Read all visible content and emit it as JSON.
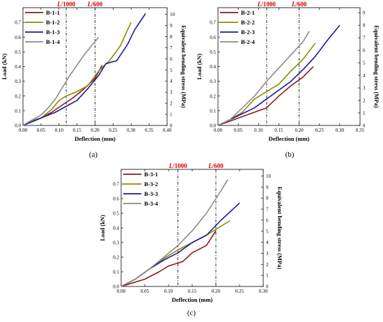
{
  "chart_data": [
    {
      "type": "line",
      "caption": "(a)",
      "xlabel": "Deflection (mm)",
      "ylabel": "Load (kN)",
      "y2label": "Equivalent bending stress (MPa)",
      "xlim": [
        0,
        0.4
      ],
      "ylim": [
        0,
        0.8
      ],
      "y2lim": [
        0,
        10.6
      ],
      "xticks": [
        "0.00",
        "0.05",
        "0.10",
        "0.15",
        "0.20",
        "0.25",
        "0.30",
        "0.35",
        "0.40"
      ],
      "yticks": [
        "0.0",
        "0.1",
        "0.2",
        "0.3",
        "0.4",
        "0.5",
        "0.6",
        "0.7"
      ],
      "y2ticks": [
        "0",
        "1",
        "2",
        "3",
        "4",
        "5",
        "6",
        "7",
        "8",
        "9",
        "10"
      ],
      "legend_position": "top-left",
      "limit_lines": [
        {
          "label_pre": "L",
          "label_post": "/1000",
          "x": 0.12
        },
        {
          "label_pre": "L",
          "label_post": "/600",
          "x": 0.2
        }
      ],
      "series": [
        {
          "name": "B-1-1",
          "color": "#8b1a1a",
          "x": [
            0,
            0.02,
            0.05,
            0.08,
            0.11,
            0.14,
            0.17,
            0.2,
            0.22
          ],
          "y": [
            0,
            0.03,
            0.05,
            0.09,
            0.14,
            0.19,
            0.25,
            0.32,
            0.41
          ]
        },
        {
          "name": "B-1-2",
          "color": "#8c8a00",
          "x": [
            0,
            0.02,
            0.05,
            0.08,
            0.1,
            0.12,
            0.15,
            0.18,
            0.21,
            0.24,
            0.27,
            0.3
          ],
          "y": [
            0,
            0.03,
            0.05,
            0.11,
            0.17,
            0.2,
            0.23,
            0.27,
            0.37,
            0.44,
            0.54,
            0.7
          ]
        },
        {
          "name": "B-1-3",
          "color": "#1a1aa0",
          "x": [
            0,
            0.03,
            0.06,
            0.09,
            0.12,
            0.15,
            0.18,
            0.21,
            0.23,
            0.26,
            0.29,
            0.31,
            0.34
          ],
          "y": [
            0,
            0.03,
            0.06,
            0.09,
            0.13,
            0.17,
            0.25,
            0.34,
            0.42,
            0.44,
            0.55,
            0.65,
            0.76
          ]
        },
        {
          "name": "B-1-4",
          "color": "#8a8a8a",
          "x": [
            0,
            0.02,
            0.05,
            0.07,
            0.09,
            0.11,
            0.13,
            0.15,
            0.17,
            0.19,
            0.21
          ],
          "y": [
            0,
            0.03,
            0.07,
            0.12,
            0.18,
            0.26,
            0.34,
            0.41,
            0.48,
            0.54,
            0.6
          ]
        }
      ]
    },
    {
      "type": "line",
      "caption": "(b)",
      "xlabel": "Deflection (mm)",
      "ylabel": "Load (kN)",
      "y2label": "Equivalent bending stress (MPa)",
      "xlim": [
        0,
        0.35
      ],
      "ylim": [
        0,
        0.8
      ],
      "y2lim": [
        0,
        9.4
      ],
      "xticks": [
        "0.00",
        "0.05",
        "0.10",
        "0.15",
        "0.20",
        "0.25",
        "0.30",
        "0.35"
      ],
      "yticks": [
        "0.0",
        "0.1",
        "0.2",
        "0.3",
        "0.4",
        "0.5",
        "0.6",
        "0.7"
      ],
      "y2ticks": [
        "0",
        "1",
        "2",
        "3",
        "4",
        "5",
        "6",
        "7",
        "8",
        "9"
      ],
      "legend_position": "top-left",
      "limit_lines": [
        {
          "label_pre": "L",
          "label_post": "/1000",
          "x": 0.12
        },
        {
          "label_pre": "L",
          "label_post": "/600",
          "x": 0.2
        }
      ],
      "series": [
        {
          "name": "B-2-1",
          "color": "#8b1a1a",
          "x": [
            0,
            0.03,
            0.06,
            0.09,
            0.12,
            0.15,
            0.18,
            0.21,
            0.235
          ],
          "y": [
            0,
            0.03,
            0.06,
            0.09,
            0.12,
            0.2,
            0.27,
            0.33,
            0.4
          ]
        },
        {
          "name": "B-2-2",
          "color": "#8c8a00",
          "x": [
            0,
            0.03,
            0.06,
            0.09,
            0.12,
            0.15,
            0.18,
            0.21,
            0.24
          ],
          "y": [
            0,
            0.04,
            0.09,
            0.18,
            0.23,
            0.28,
            0.37,
            0.45,
            0.56
          ]
        },
        {
          "name": "B-2-3",
          "color": "#1a1aa0",
          "x": [
            0,
            0.03,
            0.06,
            0.09,
            0.12,
            0.15,
            0.18,
            0.21,
            0.24,
            0.27,
            0.3
          ],
          "y": [
            0,
            0.04,
            0.08,
            0.12,
            0.18,
            0.24,
            0.3,
            0.38,
            0.47,
            0.58,
            0.68
          ]
        },
        {
          "name": "B-2-4",
          "color": "#8a8a8a",
          "x": [
            0,
            0.03,
            0.06,
            0.09,
            0.12,
            0.15,
            0.18,
            0.21,
            0.225
          ],
          "y": [
            0,
            0.04,
            0.12,
            0.2,
            0.3,
            0.39,
            0.48,
            0.57,
            0.64
          ]
        }
      ]
    },
    {
      "type": "line",
      "caption": "(c)",
      "xlabel": "Deflection (mm)",
      "ylabel": "Load (kN)",
      "y2label": "Equivalent bending stress (MPa)",
      "xlim": [
        0,
        0.3
      ],
      "ylim": [
        0,
        0.8
      ],
      "y2lim": [
        0,
        10.6
      ],
      "xticks": [
        "0.00",
        "0.05",
        "0.10",
        "0.15",
        "0.20",
        "0.25",
        "0.30"
      ],
      "yticks": [
        "0.0",
        "0.1",
        "0.2",
        "0.3",
        "0.4",
        "0.5",
        "0.6",
        "0.7"
      ],
      "y2ticks": [
        "0",
        "1",
        "2",
        "3",
        "4",
        "5",
        "6",
        "7",
        "8",
        "9",
        "10"
      ],
      "legend_position": "top-left",
      "limit_lines": [
        {
          "label_pre": "L",
          "label_post": "/1000",
          "x": 0.12
        },
        {
          "label_pre": "L",
          "label_post": "/600",
          "x": 0.2
        }
      ],
      "series": [
        {
          "name": "B-3-1",
          "color": "#8b1a1a",
          "x": [
            0,
            0.02,
            0.05,
            0.08,
            0.1,
            0.13,
            0.15,
            0.18,
            0.2
          ],
          "y": [
            0,
            0.02,
            0.05,
            0.1,
            0.14,
            0.17,
            0.23,
            0.28,
            0.38
          ]
        },
        {
          "name": "B-3-2",
          "color": "#8c8a00",
          "x": [
            0,
            0.03,
            0.06,
            0.09,
            0.12,
            0.15,
            0.18,
            0.21,
            0.23
          ],
          "y": [
            0,
            0.05,
            0.12,
            0.19,
            0.25,
            0.3,
            0.35,
            0.41,
            0.45
          ]
        },
        {
          "name": "B-3-3",
          "color": "#1a1aa0",
          "x": [
            0,
            0.03,
            0.06,
            0.09,
            0.12,
            0.15,
            0.18,
            0.21,
            0.25
          ],
          "y": [
            0,
            0.05,
            0.12,
            0.18,
            0.23,
            0.3,
            0.35,
            0.45,
            0.57
          ]
        },
        {
          "name": "B-3-4",
          "color": "#8a8a8a",
          "x": [
            0,
            0.03,
            0.06,
            0.09,
            0.12,
            0.15,
            0.18,
            0.21,
            0.225
          ],
          "y": [
            0,
            0.05,
            0.12,
            0.2,
            0.28,
            0.38,
            0.5,
            0.65,
            0.73
          ]
        }
      ]
    }
  ]
}
